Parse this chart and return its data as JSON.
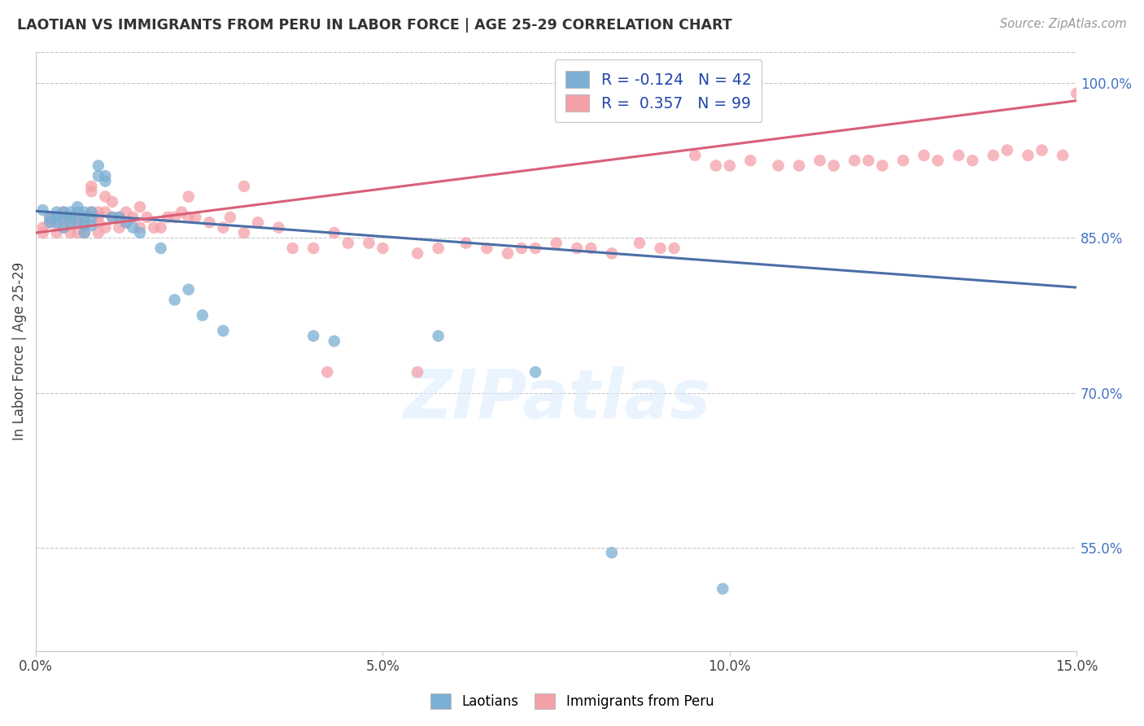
{
  "title": "LAOTIAN VS IMMIGRANTS FROM PERU IN LABOR FORCE | AGE 25-29 CORRELATION CHART",
  "source": "Source: ZipAtlas.com",
  "ylabel": "In Labor Force | Age 25-29",
  "xlim": [
    0.0,
    0.15
  ],
  "ylim": [
    0.45,
    1.03
  ],
  "yticks": [
    0.55,
    0.7,
    0.85,
    1.0
  ],
  "ytick_labels": [
    "55.0%",
    "70.0%",
    "85.0%",
    "100.0%"
  ],
  "xticks": [
    0.0,
    0.05,
    0.1,
    0.15
  ],
  "xtick_labels": [
    "0.0%",
    "5.0%",
    "10.0%",
    "15.0%"
  ],
  "legend_labels": [
    "Laotians",
    "Immigrants from Peru"
  ],
  "R_blue": -0.124,
  "N_blue": 42,
  "R_pink": 0.357,
  "N_pink": 99,
  "blue_color": "#7bafd4",
  "pink_color": "#f4a0a8",
  "blue_line_color": "#4a6fa8",
  "pink_line_color": "#d9607a",
  "watermark": "ZIPatlas",
  "blue_line_x0": 0.0,
  "blue_line_y0": 0.876,
  "blue_line_x1": 0.15,
  "blue_line_y1": 0.802,
  "pink_line_x0": 0.0,
  "pink_line_y0": 0.855,
  "pink_line_x1": 0.15,
  "pink_line_y1": 0.983,
  "blue_x": [
    0.001,
    0.002,
    0.002,
    0.003,
    0.003,
    0.003,
    0.004,
    0.004,
    0.004,
    0.005,
    0.005,
    0.005,
    0.006,
    0.006,
    0.006,
    0.007,
    0.007,
    0.007,
    0.007,
    0.008,
    0.008,
    0.008,
    0.009,
    0.009,
    0.01,
    0.01,
    0.011,
    0.012,
    0.013,
    0.014,
    0.015,
    0.018,
    0.02,
    0.022,
    0.024,
    0.027,
    0.04,
    0.043,
    0.058,
    0.072,
    0.083,
    0.099
  ],
  "blue_y": [
    0.877,
    0.865,
    0.87,
    0.87,
    0.875,
    0.865,
    0.875,
    0.87,
    0.86,
    0.875,
    0.87,
    0.865,
    0.88,
    0.875,
    0.865,
    0.875,
    0.87,
    0.862,
    0.855,
    0.875,
    0.87,
    0.862,
    0.92,
    0.91,
    0.905,
    0.91,
    0.87,
    0.87,
    0.865,
    0.86,
    0.855,
    0.84,
    0.79,
    0.8,
    0.775,
    0.76,
    0.755,
    0.75,
    0.755,
    0.72,
    0.545,
    0.51
  ],
  "pink_x": [
    0.001,
    0.001,
    0.002,
    0.002,
    0.003,
    0.003,
    0.003,
    0.004,
    0.004,
    0.004,
    0.005,
    0.005,
    0.005,
    0.006,
    0.006,
    0.006,
    0.007,
    0.007,
    0.007,
    0.008,
    0.008,
    0.008,
    0.009,
    0.009,
    0.009,
    0.01,
    0.01,
    0.01,
    0.011,
    0.011,
    0.012,
    0.012,
    0.013,
    0.013,
    0.014,
    0.015,
    0.016,
    0.017,
    0.018,
    0.019,
    0.02,
    0.021,
    0.022,
    0.023,
    0.025,
    0.027,
    0.028,
    0.03,
    0.032,
    0.035,
    0.037,
    0.04,
    0.043,
    0.045,
    0.048,
    0.05,
    0.055,
    0.058,
    0.062,
    0.065,
    0.068,
    0.07,
    0.072,
    0.075,
    0.078,
    0.08,
    0.083,
    0.087,
    0.09,
    0.092,
    0.095,
    0.098,
    0.1,
    0.103,
    0.107,
    0.11,
    0.113,
    0.115,
    0.118,
    0.12,
    0.122,
    0.125,
    0.128,
    0.13,
    0.133,
    0.135,
    0.138,
    0.14,
    0.143,
    0.145,
    0.148,
    0.15,
    0.004,
    0.009,
    0.015,
    0.022,
    0.03,
    0.042,
    0.055
  ],
  "pink_y": [
    0.855,
    0.86,
    0.865,
    0.87,
    0.865,
    0.87,
    0.855,
    0.87,
    0.86,
    0.875,
    0.865,
    0.87,
    0.855,
    0.87,
    0.855,
    0.865,
    0.87,
    0.855,
    0.865,
    0.895,
    0.9,
    0.875,
    0.87,
    0.855,
    0.865,
    0.89,
    0.875,
    0.86,
    0.885,
    0.87,
    0.87,
    0.86,
    0.875,
    0.865,
    0.87,
    0.86,
    0.87,
    0.86,
    0.86,
    0.87,
    0.87,
    0.875,
    0.87,
    0.87,
    0.865,
    0.86,
    0.87,
    0.855,
    0.865,
    0.86,
    0.84,
    0.84,
    0.855,
    0.845,
    0.845,
    0.84,
    0.835,
    0.84,
    0.845,
    0.84,
    0.835,
    0.84,
    0.84,
    0.845,
    0.84,
    0.84,
    0.835,
    0.845,
    0.84,
    0.84,
    0.93,
    0.92,
    0.92,
    0.925,
    0.92,
    0.92,
    0.925,
    0.92,
    0.925,
    0.925,
    0.92,
    0.925,
    0.93,
    0.925,
    0.93,
    0.925,
    0.93,
    0.935,
    0.93,
    0.935,
    0.93,
    0.99,
    0.87,
    0.875,
    0.88,
    0.89,
    0.9,
    0.72,
    0.72
  ]
}
